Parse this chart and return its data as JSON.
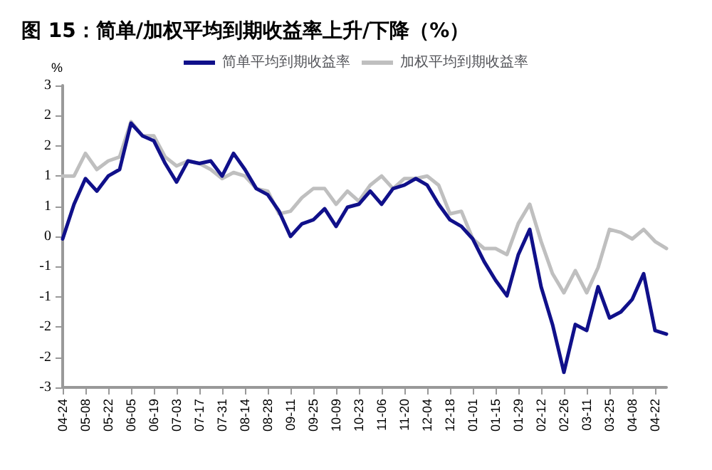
{
  "chart_data": {
    "type": "line",
    "title": "图 15：简单/加权平均到期收益率上升/下降（%）",
    "ylabel": "%",
    "categories": [
      "04-24",
      null,
      "05-08",
      null,
      "05-22",
      null,
      "06-05",
      null,
      "06-19",
      null,
      "07-03",
      null,
      "07-17",
      null,
      "07-31",
      null,
      "08-14",
      null,
      "08-28",
      null,
      "09-11",
      null,
      "09-25",
      null,
      "10-09",
      null,
      "10-23",
      null,
      "11-06",
      null,
      "11-20",
      null,
      "12-04",
      null,
      "12-18",
      null,
      "01-01",
      null,
      "01-15",
      null,
      "01-29",
      null,
      "02-12",
      null,
      "02-26",
      null,
      "03-11",
      null,
      "03-25",
      null,
      "04-08",
      null,
      "04-22",
      null
    ],
    "series": [
      {
        "name": "简单平均到期收益率",
        "color": "#10108a",
        "values": [
          -0.05,
          0.64,
          1.15,
          0.9,
          1.2,
          1.33,
          2.25,
          2.0,
          1.9,
          1.45,
          1.08,
          1.5,
          1.45,
          1.5,
          1.2,
          1.65,
          1.33,
          0.95,
          0.83,
          0.5,
          0,
          0.25,
          0.33,
          0.55,
          0.2,
          0.58,
          0.64,
          0.9,
          0.64,
          0.95,
          1.02,
          1.15,
          1.02,
          0.64,
          0.33,
          0.2,
          -0.05,
          -0.5,
          -0.87,
          -1.18,
          -0.36,
          0.14,
          -1.0,
          -1.75,
          -2.7,
          -1.75,
          -1.87,
          -1.0,
          -1.62,
          -1.5,
          -1.25,
          -0.74,
          -1.87,
          -1.94
        ]
      },
      {
        "name": "加权平均到期收益率",
        "color": "#bfbfbf",
        "values": [
          1.2,
          1.2,
          1.65,
          1.33,
          1.5,
          1.58,
          2.28,
          2.0,
          2.0,
          1.58,
          1.4,
          1.5,
          1.45,
          1.33,
          1.15,
          1.27,
          1.2,
          0.95,
          0.9,
          0.45,
          0.5,
          0.77,
          0.95,
          0.95,
          0.64,
          0.9,
          0.7,
          1.02,
          1.2,
          0.95,
          1.15,
          1.15,
          1.2,
          1.02,
          0.45,
          0.5,
          -0.05,
          -0.24,
          -0.24,
          -0.36,
          0.26,
          0.64,
          -0.1,
          -0.74,
          -1.12,
          -0.68,
          -1.12,
          -0.62,
          0.14,
          0.08,
          -0.05,
          0.14,
          -0.1,
          -0.24
        ]
      }
    ],
    "ylim": [
      -3,
      3
    ],
    "yticks": [
      {
        "value": -3,
        "label": "-3"
      },
      {
        "value": -2.4,
        "label": "-2"
      },
      {
        "value": -1.8,
        "label": "-2"
      },
      {
        "value": -1.2,
        "label": "-1"
      },
      {
        "value": -0.6,
        "label": "-1"
      },
      {
        "value": 0,
        "label": "0"
      },
      {
        "value": 0.6,
        "label": "1"
      },
      {
        "value": 1.2,
        "label": "1"
      },
      {
        "value": 1.8,
        "label": "2"
      },
      {
        "value": 2.4,
        "label": "2"
      },
      {
        "value": 3,
        "label": "3"
      }
    ],
    "grid": false,
    "legend": "top",
    "marker": "none",
    "line_style": "solid"
  }
}
